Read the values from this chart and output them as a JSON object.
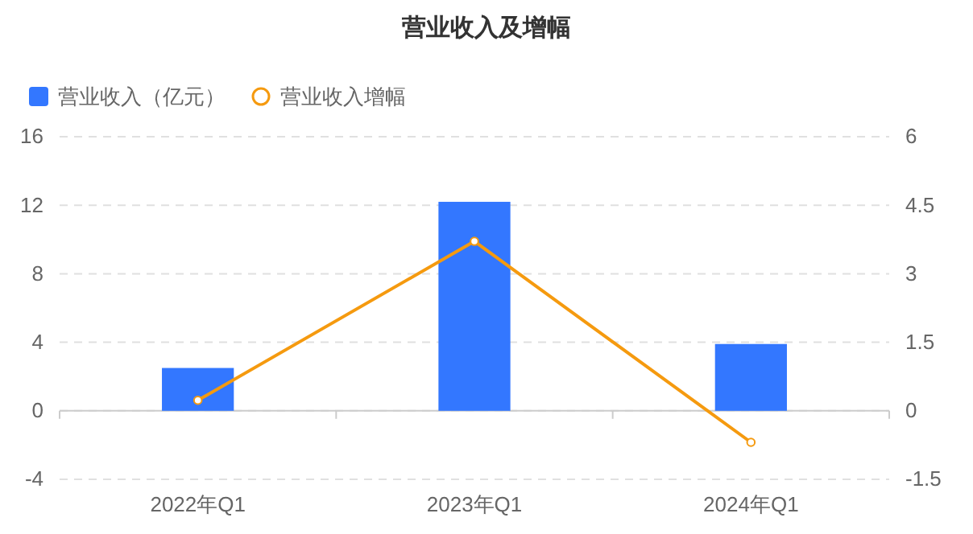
{
  "chart_data": {
    "type": "bar",
    "title": "营业收入及增幅",
    "categories": [
      "2022年Q1",
      "2023年Q1",
      "2024年Q1"
    ],
    "series": [
      {
        "name": "营业收入（亿元）",
        "color": "#3377ff",
        "values": [
          2.5,
          12.2,
          3.9
        ]
      },
      {
        "name": "营业收入增幅",
        "type": "line",
        "axis": "y2",
        "color": "#f59a0f",
        "values": [
          0.23,
          3.71,
          -0.69
        ]
      }
    ],
    "ylim": [
      -4,
      16
    ],
    "yticks": [
      -4,
      0,
      4,
      8,
      12,
      16
    ],
    "y2lim": [
      -1.5,
      6
    ],
    "y2ticks": [
      -1.5,
      0,
      1.5,
      3,
      4.5,
      6
    ],
    "grid": "y",
    "legend": "top left",
    "marker": "circle"
  }
}
